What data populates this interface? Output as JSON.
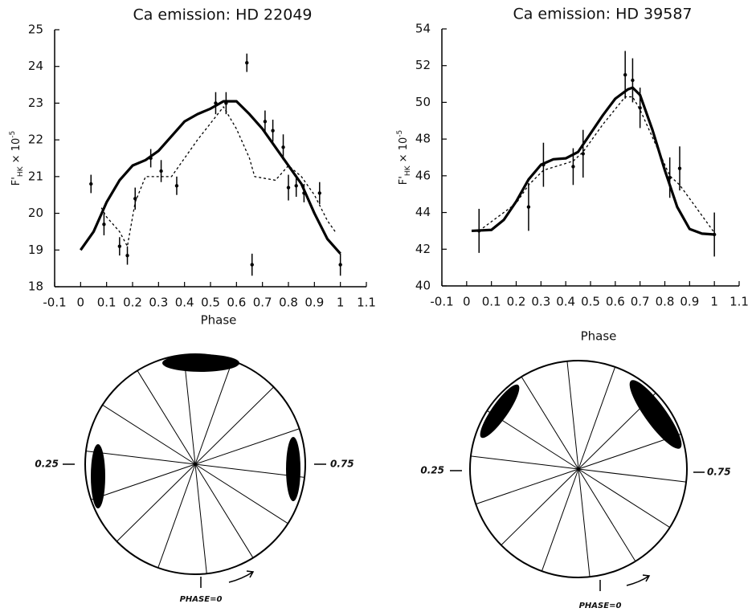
{
  "chart_data": [
    {
      "type": "errorbar-line",
      "title": "Ca emission:  HD 22049",
      "xlabel": "Phase",
      "ylabel": [
        "F'",
        "HK",
        " × 10",
        "-5"
      ],
      "xlim": [
        -0.1,
        1.1
      ],
      "xticks": [
        -0.1,
        0,
        0.1,
        0.2,
        0.3,
        0.4,
        0.5,
        0.6,
        0.7,
        0.8,
        0.9,
        1,
        1.1
      ],
      "ylim": [
        18,
        25
      ],
      "yticks": [
        18,
        19,
        20,
        21,
        22,
        23,
        24,
        25
      ],
      "series": [
        {
          "style": "errorbar",
          "color": "#000000",
          "x": [
            0.04,
            0.09,
            0.15,
            0.18,
            0.21,
            0.27,
            0.31,
            0.37,
            0.52,
            0.56,
            0.64,
            0.66,
            0.71,
            0.74,
            0.78,
            0.8,
            0.83,
            0.86,
            0.92,
            1.0
          ],
          "values": [
            20.8,
            19.7,
            19.1,
            18.85,
            20.4,
            21.5,
            21.15,
            20.75,
            23.0,
            23.0,
            24.1,
            18.6,
            22.5,
            22.25,
            21.8,
            20.7,
            20.75,
            20.55,
            20.55,
            18.6
          ],
          "errors": [
            0.25,
            0.3,
            0.25,
            0.25,
            0.3,
            0.25,
            0.3,
            0.25,
            0.3,
            0.3,
            0.25,
            0.3,
            0.3,
            0.3,
            0.35,
            0.35,
            0.3,
            0.25,
            0.3,
            0.3
          ]
        },
        {
          "style": "solid",
          "color": "#000000",
          "x": [
            0,
            0.05,
            0.1,
            0.15,
            0.2,
            0.25,
            0.3,
            0.35,
            0.4,
            0.45,
            0.5,
            0.55,
            0.6,
            0.65,
            0.7,
            0.75,
            0.8,
            0.85,
            0.9,
            0.95,
            1.0
          ],
          "values": [
            19.0,
            19.5,
            20.3,
            20.9,
            21.3,
            21.45,
            21.7,
            22.1,
            22.5,
            22.7,
            22.85,
            23.05,
            23.05,
            22.7,
            22.3,
            21.8,
            21.3,
            20.8,
            20.0,
            19.3,
            18.9
          ]
        },
        {
          "style": "dotted",
          "color": "#000000",
          "x": [
            0.08,
            0.1,
            0.15,
            0.18,
            0.21,
            0.25,
            0.3,
            0.35,
            0.45,
            0.55,
            0.6,
            0.65,
            0.67,
            0.75,
            0.8,
            0.85,
            0.9,
            0.95,
            0.98
          ],
          "values": [
            20.15,
            19.9,
            19.5,
            19.1,
            20.3,
            21.0,
            21.0,
            21.0,
            22.0,
            22.9,
            22.3,
            21.5,
            21.0,
            20.9,
            21.3,
            21.0,
            20.5,
            19.8,
            19.5
          ]
        }
      ]
    },
    {
      "type": "errorbar-line",
      "title": "Ca emission:  HD 39587",
      "xlabel": "Phase",
      "ylabel": [
        "F'",
        "HK",
        " × 10",
        "-5"
      ],
      "xlim": [
        -0.1,
        1.1
      ],
      "xticks": [
        -0.1,
        0,
        0.1,
        0.2,
        0.3,
        0.4,
        0.5,
        0.6,
        0.7,
        0.8,
        0.9,
        1,
        1.1
      ],
      "ylim": [
        40,
        54
      ],
      "yticks": [
        40,
        42,
        44,
        46,
        48,
        50,
        52,
        54
      ],
      "series": [
        {
          "style": "errorbar",
          "color": "#000000",
          "x": [
            0.05,
            0.25,
            0.31,
            0.43,
            0.47,
            0.64,
            0.67,
            0.7,
            0.82,
            0.86,
            1.0
          ],
          "values": [
            43.0,
            44.3,
            46.6,
            46.5,
            47.2,
            51.5,
            51.2,
            49.7,
            45.9,
            46.4,
            42.8
          ],
          "errors": [
            1.2,
            1.3,
            1.2,
            1.0,
            1.3,
            1.3,
            1.2,
            1.1,
            1.1,
            1.2,
            1.2
          ]
        },
        {
          "style": "solid",
          "color": "#000000",
          "x": [
            0.02,
            0.1,
            0.15,
            0.2,
            0.25,
            0.3,
            0.35,
            0.4,
            0.45,
            0.5,
            0.55,
            0.6,
            0.65,
            0.67,
            0.7,
            0.75,
            0.8,
            0.85,
            0.9,
            0.95,
            1.0
          ],
          "values": [
            43.0,
            43.05,
            43.6,
            44.6,
            45.8,
            46.6,
            46.9,
            46.95,
            47.3,
            48.3,
            49.3,
            50.2,
            50.7,
            50.8,
            50.4,
            48.5,
            46.3,
            44.3,
            43.1,
            42.85,
            42.8
          ]
        },
        {
          "style": "dotted",
          "color": "#000000",
          "x": [
            0.05,
            0.1,
            0.2,
            0.25,
            0.31,
            0.43,
            0.47,
            0.55,
            0.64,
            0.67,
            0.7,
            0.82,
            0.86,
            1.0
          ],
          "values": [
            43.0,
            43.5,
            44.5,
            45.5,
            46.3,
            46.8,
            47.3,
            48.8,
            50.3,
            50.3,
            49.6,
            46.0,
            45.5,
            42.9
          ]
        }
      ]
    }
  ],
  "diagrams": [
    {
      "left_label": "0.25",
      "right_label": "0.75",
      "bottom_label": "PHASE=0"
    },
    {
      "left_label": "0.25",
      "right_label": "0.75",
      "bottom_label": "PHASE=0"
    }
  ]
}
